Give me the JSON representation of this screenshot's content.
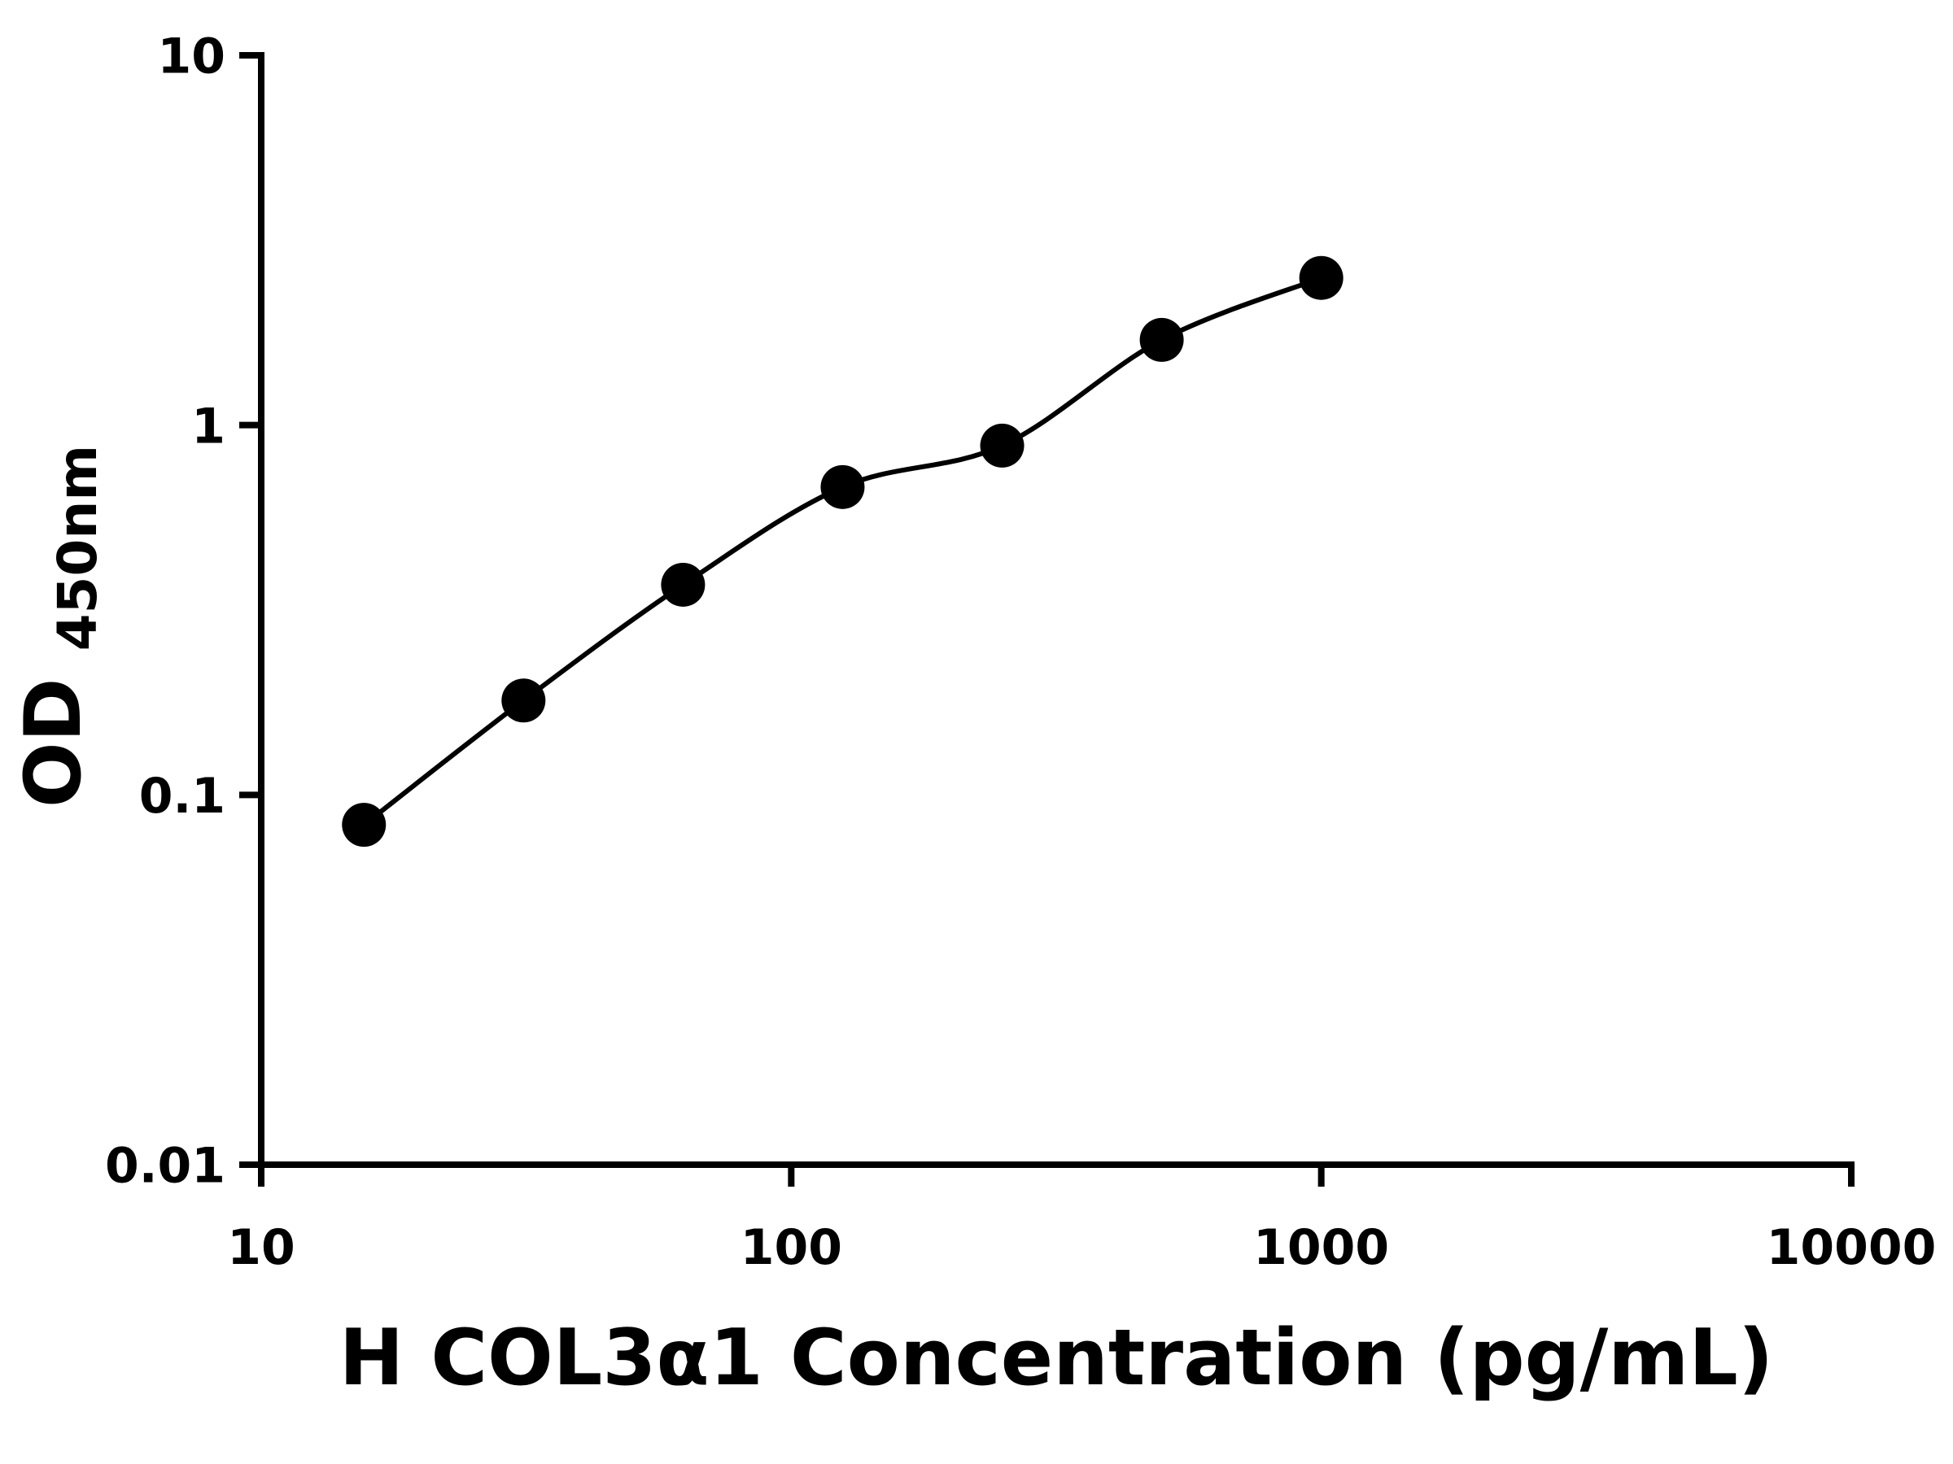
{
  "chart_data": {
    "type": "scatter",
    "title": "",
    "xlabel": "H COL3α1 Concentration (pg/mL)",
    "ylabel_main": "OD",
    "ylabel_sub": "450nm",
    "x_scale": "log",
    "y_scale": "log",
    "xlim": [
      10,
      10000
    ],
    "ylim": [
      0.01,
      10
    ],
    "x_ticks": [
      10,
      100,
      1000,
      10000
    ],
    "x_tick_labels": [
      "10",
      "100",
      "1000",
      "10000"
    ],
    "y_ticks": [
      0.01,
      0.1,
      1,
      10
    ],
    "y_tick_labels": [
      "0.01",
      "0.1",
      "1",
      "10"
    ],
    "grid": false,
    "legend": "none",
    "series": [
      {
        "name": "standard-curve",
        "marker": "filled-circle",
        "fit": "smooth-curve-through-points",
        "x": [
          15.625,
          31.25,
          62.5,
          125,
          250,
          500,
          1000
        ],
        "y": [
          0.083,
          0.18,
          0.37,
          0.68,
          0.88,
          1.7,
          2.5
        ]
      }
    ],
    "colors": {
      "axis": "#000000",
      "marker": "#000000",
      "curve": "#000000",
      "background": "#ffffff"
    }
  }
}
